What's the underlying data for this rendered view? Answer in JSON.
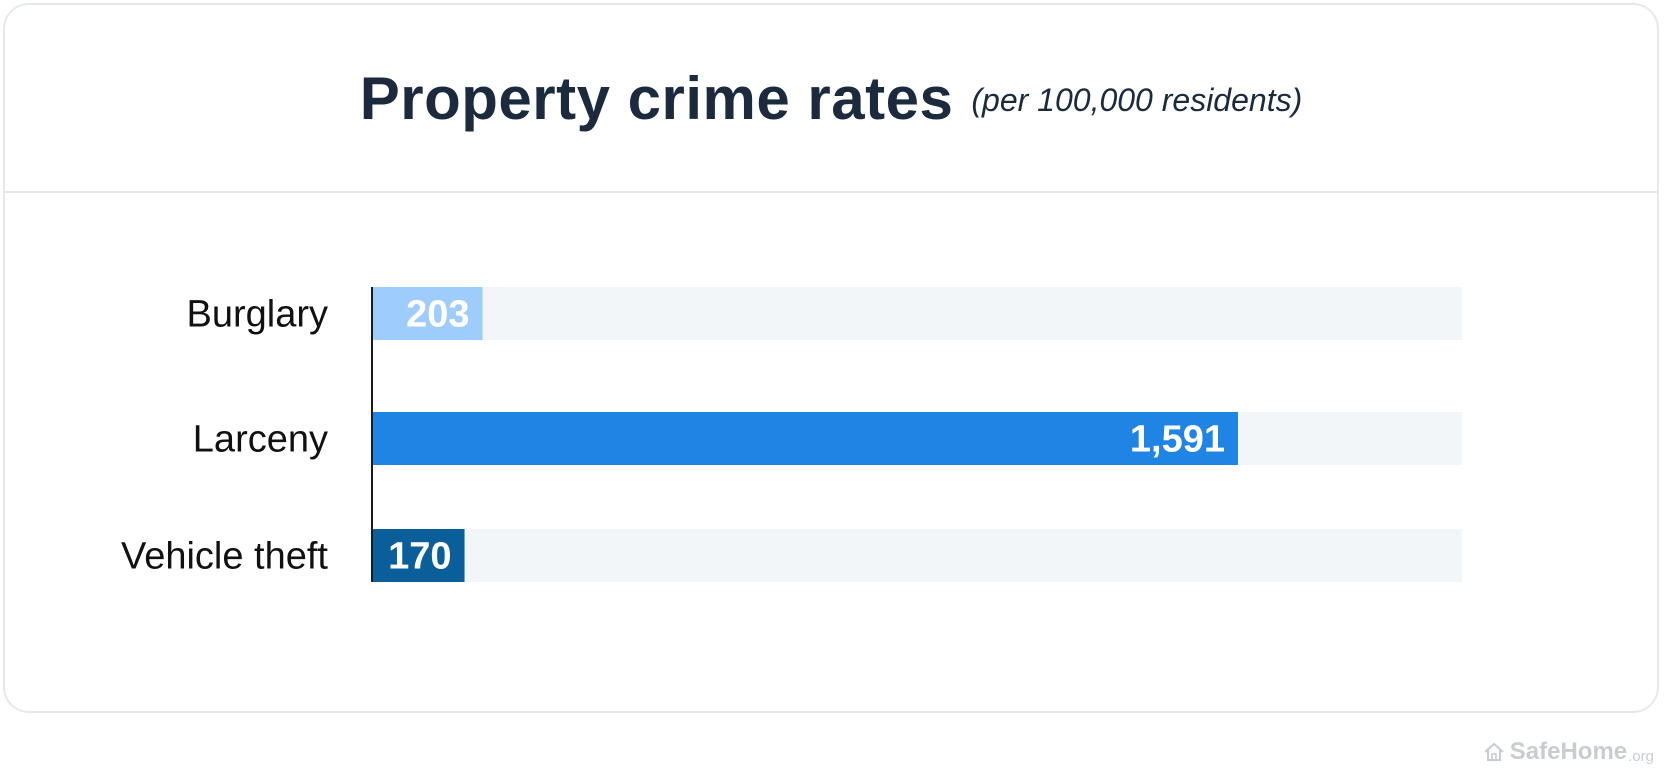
{
  "header": {
    "title": "Property crime rates",
    "subtitle": "(per 100,000 residents)"
  },
  "chart_data": {
    "type": "bar",
    "orientation": "horizontal",
    "title": "Property crime rates",
    "subtitle": "(per 100,000 residents)",
    "categories": [
      "Burglary",
      "Larceny",
      "Vehicle theft"
    ],
    "values": [
      203,
      1591,
      170
    ],
    "value_labels": [
      "203",
      "1,591",
      "170"
    ],
    "xlim": [
      0,
      2000
    ],
    "xlabel": "",
    "ylabel": "",
    "grid": false,
    "legend": "none",
    "colors": [
      "#9fcdfb",
      "#1f84e4",
      "#0a5f9a"
    ],
    "track_color": "#f3f6f8"
  },
  "watermark": {
    "brand": "SafeHome",
    "tld": ".org",
    "icon": "house-icon"
  }
}
